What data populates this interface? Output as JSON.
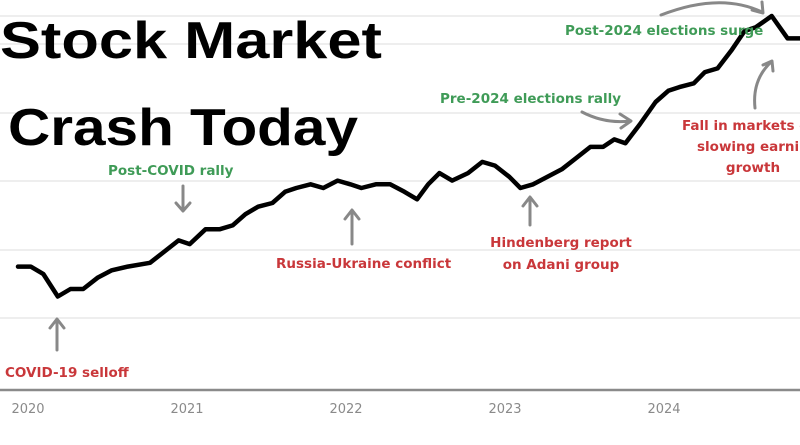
{
  "title": {
    "line1": "Stock Market",
    "line2": "Crash Today"
  },
  "chart_data": {
    "type": "line",
    "xlabel": "",
    "ylabel": "",
    "xticks": [
      "2020",
      "2021",
      "2022",
      "2023",
      "2024"
    ],
    "xlim": [
      2020,
      2024.92
    ],
    "ylim": [
      0,
      100
    ],
    "grid": true,
    "line_color": "#000000",
    "x": [
      2020.0,
      2020.08,
      2020.16,
      2020.25,
      2020.33,
      2020.41,
      2020.5,
      2020.59,
      2020.69,
      2020.83,
      2020.92,
      2021.01,
      2021.08,
      2021.18,
      2021.27,
      2021.35,
      2021.43,
      2021.51,
      2021.6,
      2021.68,
      2021.75,
      2021.84,
      2021.92,
      2022.01,
      2022.09,
      2022.16,
      2022.25,
      2022.34,
      2022.43,
      2022.51,
      2022.58,
      2022.65,
      2022.73,
      2022.83,
      2022.92,
      2023.0,
      2023.09,
      2023.16,
      2023.24,
      2023.33,
      2023.42,
      2023.51,
      2023.6,
      2023.68,
      2023.75,
      2023.82,
      2023.91,
      2024.01,
      2024.09,
      2024.16,
      2024.25,
      2024.32,
      2024.4,
      2024.49,
      2024.57,
      2024.64,
      2024.74,
      2024.84,
      2024.92
    ],
    "values": [
      33,
      33,
      31,
      25,
      27,
      27,
      30,
      32,
      33,
      34,
      37,
      40,
      39,
      43,
      43,
      44,
      47,
      49,
      50,
      53,
      54,
      55,
      54,
      56,
      55,
      54,
      55,
      55,
      53,
      51,
      55,
      58,
      56,
      58,
      61,
      60,
      57,
      54,
      55,
      57,
      59,
      62,
      65,
      65,
      67,
      66,
      71,
      77,
      80,
      81,
      82,
      85,
      86,
      91,
      96,
      97,
      100,
      94,
      94
    ],
    "annotations": [
      {
        "text": [
          "COVID-19 selloff"
        ],
        "color": "red"
      },
      {
        "text": [
          "Post-COVID rally"
        ],
        "color": "green"
      },
      {
        "text": [
          "Russia-Ukraine conflict"
        ],
        "color": "red"
      },
      {
        "text": [
          "Hindenberg report",
          "on Adani group"
        ],
        "color": "red"
      },
      {
        "text": [
          "Pre-2024 elections rally"
        ],
        "color": "green"
      },
      {
        "text": [
          "Post-2024 elections surge"
        ],
        "color": "green"
      },
      {
        "text": [
          "Fall in markets o",
          "slowing earnin",
          "growth"
        ],
        "color": "red"
      }
    ]
  },
  "colors": {
    "green": "#3f9b57",
    "red": "#c9373a",
    "grid": "#dddddd",
    "axis": "#8a8a8a"
  }
}
